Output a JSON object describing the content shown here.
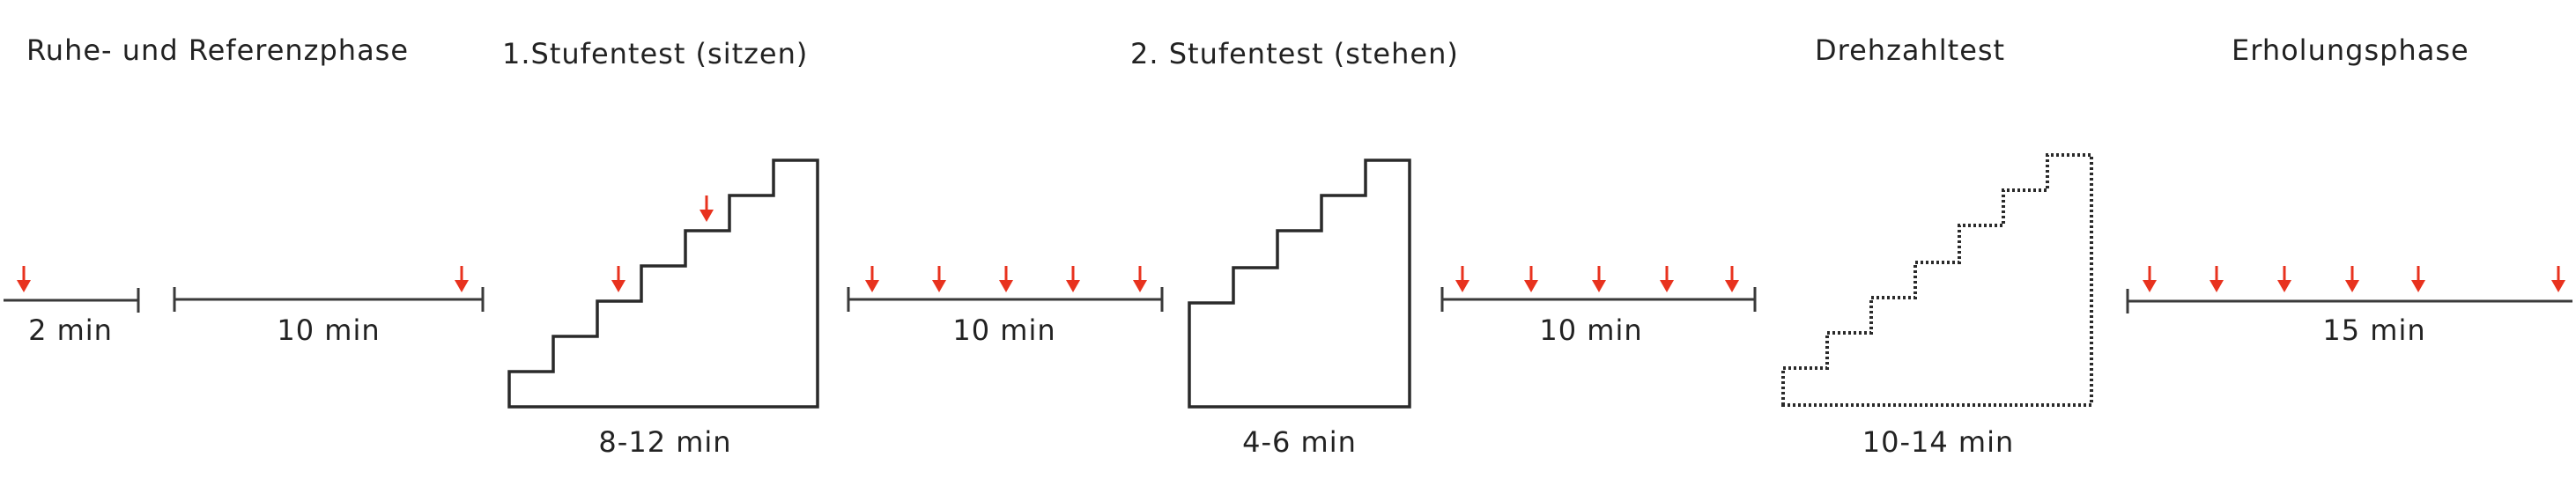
{
  "phases": [
    {
      "title": "Ruhe- und Referenzphase"
    },
    {
      "title": "1.Stufentest (sitzen)",
      "duration": "8-12 min"
    },
    {
      "title": "2. Stufentest (stehen)",
      "duration": "4-6 min"
    },
    {
      "title": "Drehzahltest",
      "duration": "10-14 min"
    },
    {
      "title": "Erholungsphase",
      "duration": "15 min"
    }
  ],
  "segments": [
    {
      "duration": "2 min"
    },
    {
      "duration": "10 min"
    },
    {
      "duration": "10 min"
    },
    {
      "duration": "10 min"
    }
  ],
  "colors": {
    "arrow": "#e8321e",
    "line": "#3a3a3a",
    "text": "#222222"
  }
}
